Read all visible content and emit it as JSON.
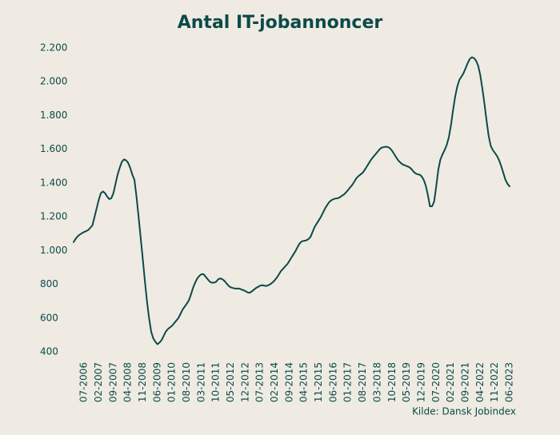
{
  "chart_data": {
    "type": "line",
    "title": "Antal IT-jobannoncer",
    "source": "Kilde: Dansk Jobindex",
    "categories": [
      null,
      null,
      null,
      null,
      null,
      "07-2006",
      null,
      null,
      null,
      null,
      null,
      null,
      "02-2007",
      null,
      null,
      null,
      null,
      null,
      null,
      "09-2007",
      null,
      null,
      null,
      null,
      null,
      null,
      "04-2008",
      null,
      null,
      null,
      null,
      null,
      null,
      "11-2008",
      null,
      null,
      null,
      null,
      null,
      null,
      "06-2009",
      null,
      null,
      null,
      null,
      null,
      null,
      "01-2010",
      null,
      null,
      null,
      null,
      null,
      null,
      "08-2010",
      null,
      null,
      null,
      null,
      null,
      null,
      "03-2011",
      null,
      null,
      null,
      null,
      null,
      null,
      "10-2011",
      null,
      null,
      null,
      null,
      null,
      null,
      "05-2012",
      null,
      null,
      null,
      null,
      null,
      null,
      "12-2012",
      null,
      null,
      null,
      null,
      null,
      null,
      "07-2013",
      null,
      null,
      null,
      null,
      null,
      null,
      "02-2014",
      null,
      null,
      null,
      null,
      null,
      null,
      "09-2014",
      null,
      null,
      null,
      null,
      null,
      null,
      "04-2015",
      null,
      null,
      null,
      null,
      null,
      null,
      "11-2015",
      null,
      null,
      null,
      null,
      null,
      null,
      "06-2016",
      null,
      null,
      null,
      null,
      null,
      null,
      "01-2017",
      null,
      null,
      null,
      null,
      null,
      null,
      "08-2017",
      null,
      null,
      null,
      null,
      null,
      null,
      "03-2018",
      null,
      null,
      null,
      null,
      null,
      null,
      "10-2018",
      null,
      null,
      null,
      null,
      null,
      null,
      "05-2019",
      null,
      null,
      null,
      null,
      null,
      null,
      "12-2019",
      null,
      null,
      null,
      null,
      null,
      null,
      "07-2020",
      null,
      null,
      null,
      null,
      null,
      null,
      "02-2021",
      null,
      null,
      null,
      null,
      null,
      null,
      "09-2021",
      null,
      null,
      null,
      null,
      null,
      null,
      "04-2022",
      null,
      null,
      null,
      null,
      null,
      null,
      "11-2022",
      null,
      null,
      null,
      null,
      null,
      null,
      "06-2023"
    ],
    "values": [
      1050,
      1070,
      1085,
      1095,
      1103,
      1110,
      1115,
      1122,
      1135,
      1150,
      1200,
      1250,
      1300,
      1340,
      1350,
      1340,
      1320,
      1305,
      1310,
      1340,
      1395,
      1450,
      1490,
      1525,
      1540,
      1535,
      1520,
      1490,
      1450,
      1420,
      1320,
      1200,
      1075,
      950,
      820,
      700,
      600,
      520,
      480,
      460,
      445,
      455,
      470,
      495,
      520,
      535,
      545,
      555,
      570,
      585,
      600,
      625,
      650,
      668,
      685,
      705,
      740,
      780,
      810,
      835,
      850,
      860,
      860,
      845,
      830,
      815,
      810,
      810,
      815,
      830,
      835,
      830,
      820,
      805,
      790,
      782,
      778,
      775,
      775,
      775,
      770,
      765,
      760,
      752,
      750,
      758,
      768,
      778,
      785,
      792,
      795,
      792,
      790,
      795,
      802,
      812,
      825,
      840,
      860,
      880,
      893,
      907,
      920,
      940,
      960,
      980,
      1000,
      1025,
      1045,
      1055,
      1058,
      1060,
      1068,
      1080,
      1110,
      1140,
      1160,
      1180,
      1200,
      1225,
      1250,
      1270,
      1288,
      1298,
      1305,
      1308,
      1310,
      1315,
      1325,
      1332,
      1345,
      1360,
      1375,
      1390,
      1410,
      1430,
      1442,
      1452,
      1462,
      1480,
      1500,
      1520,
      1540,
      1555,
      1570,
      1585,
      1600,
      1610,
      1613,
      1615,
      1613,
      1605,
      1590,
      1570,
      1550,
      1532,
      1520,
      1510,
      1505,
      1500,
      1495,
      1485,
      1470,
      1458,
      1452,
      1450,
      1440,
      1420,
      1385,
      1330,
      1262,
      1262,
      1290,
      1380,
      1480,
      1540,
      1570,
      1595,
      1625,
      1670,
      1740,
      1830,
      1910,
      1970,
      2010,
      2030,
      2050,
      2080,
      2110,
      2135,
      2145,
      2140,
      2125,
      2095,
      2040,
      1960,
      1870,
      1770,
      1680,
      1620,
      1595,
      1578,
      1560,
      1535,
      1500,
      1460,
      1420,
      1395,
      1380
    ],
    "color": "#0b4a4a",
    "ylim": [
      400,
      2200
    ],
    "yticks": [
      400,
      600,
      800,
      {
        "value": 1000,
        "label": "1.000"
      },
      {
        "value": 1200,
        "label": "1.200"
      },
      {
        "value": 1400,
        "label": "1.400"
      },
      {
        "value": 1600,
        "label": "1.600"
      },
      {
        "value": 1800,
        "label": "1.800"
      },
      {
        "value": 2000,
        "label": "2.000"
      },
      {
        "value": 2200,
        "label": "2.200"
      }
    ],
    "grid": false
  }
}
